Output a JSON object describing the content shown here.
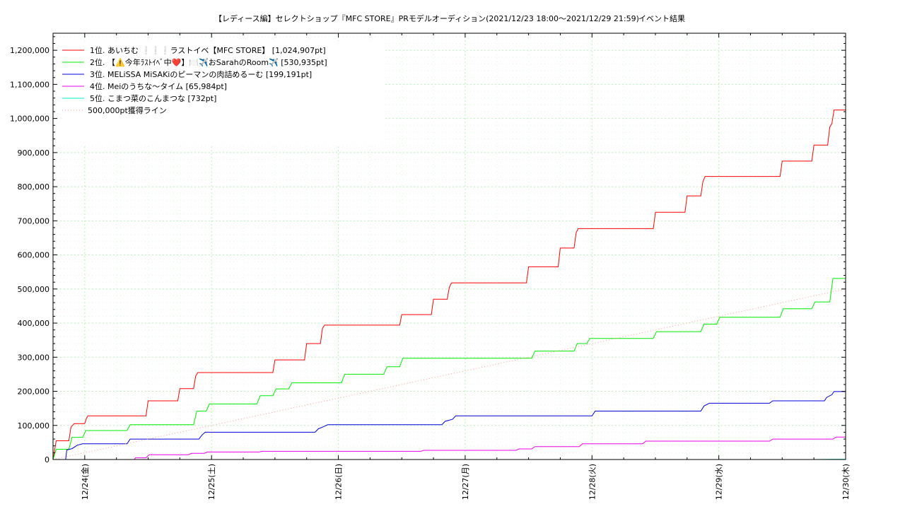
{
  "chart_data": {
    "type": "line",
    "title": "【レディース編】セレクトショップ『MFC STORE』PRモデルオーディション(2021/12/23 18:00～2021/12/29 21:59)",
    "subtitle": "イベント結果",
    "xlabel": "",
    "ylabel": "",
    "x_unit": "hours since 2021/12/23 18:00",
    "xlim": [
      0,
      150
    ],
    "ylim": [
      0,
      1250000
    ],
    "grid": true,
    "legend_position": "top-left",
    "x_ticks": [
      {
        "label": "12/24(金)",
        "x": 6
      },
      {
        "label": "12/25(土)",
        "x": 30
      },
      {
        "label": "12/26(日)",
        "x": 54
      },
      {
        "label": "12/27(月)",
        "x": 78
      },
      {
        "label": "12/28(火)",
        "x": 102
      },
      {
        "label": "12/29(水)",
        "x": 126
      },
      {
        "label": "12/30(木)",
        "x": 150
      }
    ],
    "y_ticks": [
      "0",
      "100,000",
      "200,000",
      "300,000",
      "400,000",
      "500,000",
      "600,000",
      "700,000",
      "800,000",
      "900,000",
      "1,000,000",
      "1,100,000",
      "1,200,000"
    ],
    "y_tick_values": [
      0,
      100000,
      200000,
      300000,
      400000,
      500000,
      600000,
      700000,
      800000,
      900000,
      1000000,
      1100000,
      1200000
    ],
    "series": [
      {
        "name": "1位. あいちむ ❕❕❕ラストイベ【MFC STORE】 [1,024,907pt]",
        "color": "#ff0000",
        "points": [
          [
            0,
            0
          ],
          [
            0.6,
            55000
          ],
          [
            3.0,
            55000
          ],
          [
            3.4,
            95000
          ],
          [
            4.0,
            105000
          ],
          [
            6.0,
            105000
          ],
          [
            6.3,
            120000
          ],
          [
            6.6,
            128000
          ],
          [
            17.6,
            128000
          ],
          [
            18.0,
            172000
          ],
          [
            23.6,
            172000
          ],
          [
            24.0,
            208000
          ],
          [
            26.6,
            208000
          ],
          [
            27.0,
            245000
          ],
          [
            27.4,
            255000
          ],
          [
            41.6,
            255000
          ],
          [
            42.0,
            292000
          ],
          [
            47.6,
            292000
          ],
          [
            48.0,
            340000
          ],
          [
            50.6,
            340000
          ],
          [
            51.0,
            385000
          ],
          [
            51.4,
            394000
          ],
          [
            65.6,
            394000
          ],
          [
            66.0,
            425000
          ],
          [
            71.6,
            425000
          ],
          [
            72.0,
            470000
          ],
          [
            74.6,
            470000
          ],
          [
            75.0,
            505000
          ],
          [
            75.4,
            518000
          ],
          [
            89.6,
            518000
          ],
          [
            90.0,
            565000
          ],
          [
            95.6,
            565000
          ],
          [
            96.0,
            620000
          ],
          [
            98.6,
            620000
          ],
          [
            99.0,
            665000
          ],
          [
            99.4,
            677000
          ],
          [
            113.6,
            677000
          ],
          [
            114.0,
            725000
          ],
          [
            119.6,
            725000
          ],
          [
            120.0,
            773000
          ],
          [
            122.6,
            773000
          ],
          [
            123.0,
            815000
          ],
          [
            123.4,
            830000
          ],
          [
            137.6,
            830000
          ],
          [
            138.0,
            875000
          ],
          [
            143.6,
            875000
          ],
          [
            144.0,
            922000
          ],
          [
            146.6,
            922000
          ],
          [
            147.0,
            975000
          ],
          [
            147.4,
            985000
          ],
          [
            147.8,
            1024907
          ],
          [
            150.0,
            1024907
          ]
        ]
      },
      {
        "name": "2位. 【⚠️今年ﾗｽﾄｲﾍﾞ中❤️】🍽️✈️おSarahのRoom✈️ [530,935pt]",
        "color": "#00ee00",
        "points": [
          [
            0,
            0
          ],
          [
            0.6,
            30000
          ],
          [
            3.0,
            30000
          ],
          [
            3.6,
            65000
          ],
          [
            5.6,
            65000
          ],
          [
            6.2,
            85000
          ],
          [
            14.0,
            85000
          ],
          [
            14.6,
            102000
          ],
          [
            26.6,
            102000
          ],
          [
            27.2,
            142000
          ],
          [
            29.0,
            142000
          ],
          [
            29.6,
            163000
          ],
          [
            38.6,
            163000
          ],
          [
            39.2,
            187000
          ],
          [
            41.6,
            187000
          ],
          [
            42.2,
            207000
          ],
          [
            44.6,
            207000
          ],
          [
            45.2,
            225000
          ],
          [
            54.6,
            225000
          ],
          [
            55.2,
            250000
          ],
          [
            62.6,
            250000
          ],
          [
            63.2,
            272000
          ],
          [
            65.6,
            272000
          ],
          [
            66.2,
            297000
          ],
          [
            90.6,
            297000
          ],
          [
            91.2,
            318000
          ],
          [
            98.6,
            318000
          ],
          [
            99.2,
            340000
          ],
          [
            101.0,
            340000
          ],
          [
            101.6,
            355000
          ],
          [
            113.6,
            355000
          ],
          [
            114.2,
            375000
          ],
          [
            122.6,
            375000
          ],
          [
            123.2,
            397000
          ],
          [
            125.6,
            397000
          ],
          [
            126.2,
            417000
          ],
          [
            137.6,
            417000
          ],
          [
            138.2,
            442000
          ],
          [
            143.6,
            442000
          ],
          [
            144.2,
            462000
          ],
          [
            147.0,
            462000
          ],
          [
            147.6,
            530935
          ],
          [
            150.0,
            530935
          ]
        ]
      },
      {
        "name": "3位. MELiSSA MiSAKiのピーマンの肉詰めるーむ [199,191pt]",
        "color": "#0000dd",
        "points": [
          [
            2.4,
            0
          ],
          [
            2.6,
            28000
          ],
          [
            3.6,
            32000
          ],
          [
            4.6,
            42000
          ],
          [
            5.6,
            46000
          ],
          [
            14.0,
            46000
          ],
          [
            14.6,
            60000
          ],
          [
            27.6,
            60000
          ],
          [
            28.2,
            72000
          ],
          [
            28.8,
            80000
          ],
          [
            49.6,
            80000
          ],
          [
            50.2,
            90000
          ],
          [
            51.0,
            95000
          ],
          [
            52.0,
            102000
          ],
          [
            73.6,
            102000
          ],
          [
            74.2,
            112000
          ],
          [
            75.6,
            118000
          ],
          [
            76.2,
            128000
          ],
          [
            102.0,
            128000
          ],
          [
            102.6,
            142000
          ],
          [
            122.6,
            142000
          ],
          [
            123.2,
            157000
          ],
          [
            124.2,
            165000
          ],
          [
            135.6,
            165000
          ],
          [
            136.2,
            172000
          ],
          [
            146.0,
            172000
          ],
          [
            146.4,
            182000
          ],
          [
            147.4,
            190000
          ],
          [
            147.8,
            199191
          ],
          [
            150.0,
            199191
          ]
        ]
      },
      {
        "name": "4位. Meiのうちな〜タイム [65,984pt]",
        "color": "#ee00ee",
        "points": [
          [
            15.4,
            0
          ],
          [
            15.6,
            5000
          ],
          [
            17.6,
            5000
          ],
          [
            18.2,
            14000
          ],
          [
            25.6,
            14000
          ],
          [
            26.2,
            18000
          ],
          [
            28.6,
            18000
          ],
          [
            29.2,
            22000
          ],
          [
            39.0,
            22000
          ],
          [
            39.6,
            24000
          ],
          [
            69.6,
            24000
          ],
          [
            70.2,
            27000
          ],
          [
            87.6,
            27000
          ],
          [
            88.2,
            31000
          ],
          [
            90.6,
            31000
          ],
          [
            91.2,
            38000
          ],
          [
            99.6,
            38000
          ],
          [
            100.2,
            46000
          ],
          [
            111.6,
            46000
          ],
          [
            112.2,
            54000
          ],
          [
            135.6,
            54000
          ],
          [
            136.2,
            60000
          ],
          [
            147.6,
            60000
          ],
          [
            148.2,
            65984
          ],
          [
            150.0,
            65984
          ]
        ]
      },
      {
        "name": "5位. こまつ菜のこんまつな [732pt]",
        "color": "#00eecc",
        "points": [
          [
            0,
            0
          ],
          [
            144,
            0
          ],
          [
            148,
            732
          ],
          [
            150,
            732
          ]
        ]
      },
      {
        "name": "500,000pt獲得ライン",
        "color": "#ff9999",
        "dotted": true,
        "points": [
          [
            0,
            0
          ],
          [
            150,
            500000
          ]
        ]
      }
    ]
  }
}
